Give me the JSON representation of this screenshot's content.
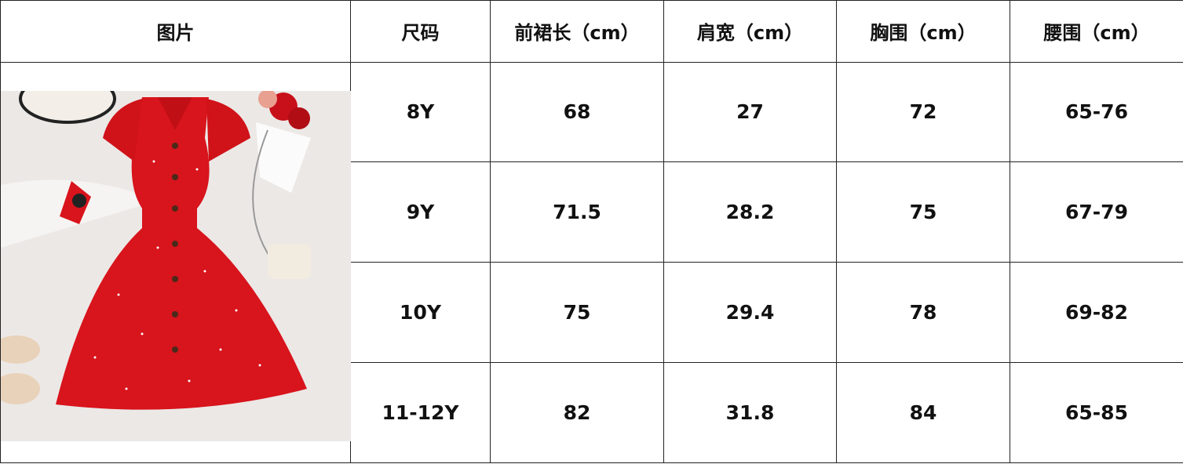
{
  "headers": [
    "图片",
    "尺码",
    "前裙长（cm）",
    "肩宽（cm）",
    "胸围（cm）",
    "腰围（cm）"
  ],
  "rows": [
    [
      "8Y",
      "68",
      "27",
      "72",
      "65-76"
    ],
    [
      "9Y",
      "71.5",
      "28.2",
      "75",
      "67-79"
    ],
    [
      "10Y",
      "75",
      "29.4",
      "78",
      "69-82"
    ],
    [
      "11-12Y",
      "82",
      "31.8",
      "84",
      "65-85"
    ]
  ],
  "image": {
    "subject": "red-sleeveless-button-dress",
    "dress_color": "#d8141c"
  }
}
